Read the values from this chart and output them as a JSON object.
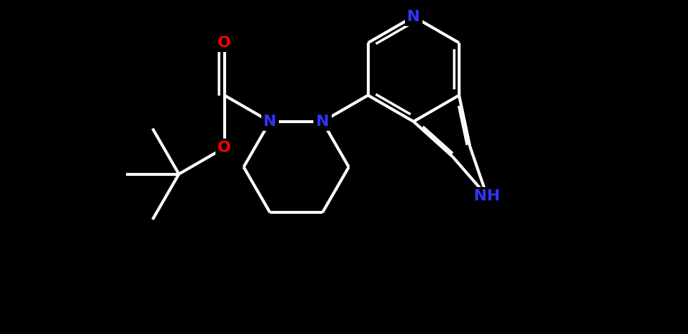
{
  "bg_color": "#000000",
  "bond_color": "#ffffff",
  "bond_width": 3.0,
  "atom_colors": {
    "N": "#3333ff",
    "NH": "#3333ff",
    "O": "#ff0000",
    "C": "#ffffff"
  },
  "font_size_atom": 16,
  "figsize": [
    9.77,
    4.75
  ],
  "dpi": 100,
  "xlim": [
    0,
    14
  ],
  "ylim": [
    0,
    7
  ]
}
